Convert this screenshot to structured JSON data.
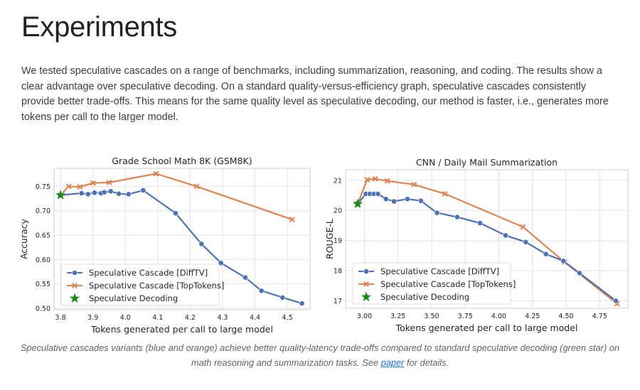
{
  "heading": "Experiments",
  "intro": "We tested speculative cascades on a range of benchmarks, including summarization, reasoning, and coding. The results show a clear advantage over speculative decoding. On a standard quality-versus-efficiency graph, speculative cascades consistently provide better trade-offs. This means for the same quality level as speculative decoding, our method is faster, i.e., generates more tokens per call to the larger model.",
  "caption": {
    "before": "Speculative cascades variants (blue and orange) achieve better quality-latency trade-offs compared to standard speculative decoding (green star) on math reasoning and summarization tasks. See ",
    "link": "paper",
    "after": " for details."
  },
  "colors": {
    "blue": "#4c72b0",
    "orange": "#dd8452",
    "green": "#1a8a1a",
    "grid": "#e3e3e3",
    "axis": "#cccccc",
    "text": "#262626"
  },
  "chart_data": [
    {
      "type": "line",
      "title": "Grade School Math 8K (GSM8K)",
      "xlabel": "Tokens generated per call to large model",
      "ylabel": "Accuracy",
      "xlim": [
        3.78,
        4.57
      ],
      "ylim": [
        0.497,
        0.787
      ],
      "xticks": [
        3.8,
        3.9,
        4.0,
        4.1,
        4.2,
        4.3,
        4.4,
        4.5
      ],
      "xtick_labels": [
        "3.8",
        "3.9",
        "4.0",
        "4.1",
        "4.2",
        "4.3",
        "4.4",
        "4.5"
      ],
      "yticks": [
        0.5,
        0.55,
        0.6,
        0.65,
        0.7,
        0.75
      ],
      "ytick_labels": [
        "0.50",
        "0.55",
        "0.60",
        "0.65",
        "0.70",
        "0.75"
      ],
      "grid": true,
      "legend_position": "bottom-left",
      "series": [
        {
          "name": "Speculative Cascade [DiffTV]",
          "color": "#4c72b0",
          "marker": "circle",
          "x": [
            3.8,
            3.865,
            3.885,
            3.905,
            3.925,
            3.935,
            3.955,
            3.98,
            4.01,
            4.055,
            4.155,
            4.235,
            4.295,
            4.37,
            4.42,
            4.485,
            4.545
          ],
          "y": [
            0.732,
            0.736,
            0.734,
            0.737,
            0.736,
            0.738,
            0.74,
            0.735,
            0.734,
            0.742,
            0.695,
            0.632,
            0.593,
            0.563,
            0.536,
            0.522,
            0.51
          ]
        },
        {
          "name": "Speculative Cascade [TopTokens]",
          "color": "#dd8452",
          "marker": "x",
          "x": [
            3.8,
            3.825,
            3.86,
            3.9,
            3.95,
            4.095,
            4.22,
            4.515
          ],
          "y": [
            0.732,
            0.75,
            0.749,
            0.757,
            0.758,
            0.776,
            0.75,
            0.682
          ]
        },
        {
          "name": "Speculative Decoding",
          "color": "#1a8a1a",
          "marker": "star",
          "x": [
            3.8
          ],
          "y": [
            0.732
          ]
        }
      ]
    },
    {
      "type": "line",
      "title": "CNN / Daily Mail Summarization",
      "xlabel": "Tokens generated per call to large model",
      "ylabel": "ROUGE-L",
      "xlim": [
        2.86,
        4.96
      ],
      "ylim": [
        16.75,
        21.35
      ],
      "xticks": [
        3.0,
        3.25,
        3.5,
        3.75,
        4.0,
        4.25,
        4.5,
        4.75
      ],
      "xtick_labels": [
        "3.00",
        "3.25",
        "3.50",
        "3.75",
        "4.00",
        "4.25",
        "4.50",
        "4.75"
      ],
      "yticks": [
        17,
        18,
        19,
        20,
        21
      ],
      "ytick_labels": [
        "17",
        "18",
        "19",
        "20",
        "21"
      ],
      "grid": true,
      "legend_position": "bottom-left",
      "series": [
        {
          "name": "Speculative Cascade [DiffTV]",
          "color": "#4c72b0",
          "marker": "circle",
          "x": [
            2.95,
            3.01,
            3.04,
            3.07,
            3.1,
            3.16,
            3.22,
            3.32,
            3.42,
            3.54,
            3.69,
            3.86,
            4.05,
            4.2,
            4.35,
            4.48,
            4.6,
            4.87
          ],
          "y": [
            20.22,
            20.55,
            20.55,
            20.55,
            20.55,
            20.38,
            20.3,
            20.38,
            20.32,
            19.92,
            19.78,
            19.58,
            19.17,
            18.95,
            18.55,
            18.32,
            17.92,
            17.0
          ]
        },
        {
          "name": "Speculative Cascade [TopTokens]",
          "color": "#dd8452",
          "marker": "x",
          "x": [
            2.95,
            3.02,
            3.08,
            3.17,
            3.37,
            3.6,
            4.18,
            4.49,
            4.88
          ],
          "y": [
            20.22,
            21.02,
            21.05,
            20.98,
            20.86,
            20.55,
            19.45,
            18.28,
            16.9
          ]
        },
        {
          "name": "Speculative Decoding",
          "color": "#1a8a1a",
          "marker": "star",
          "x": [
            2.95
          ],
          "y": [
            20.22
          ]
        }
      ]
    }
  ]
}
